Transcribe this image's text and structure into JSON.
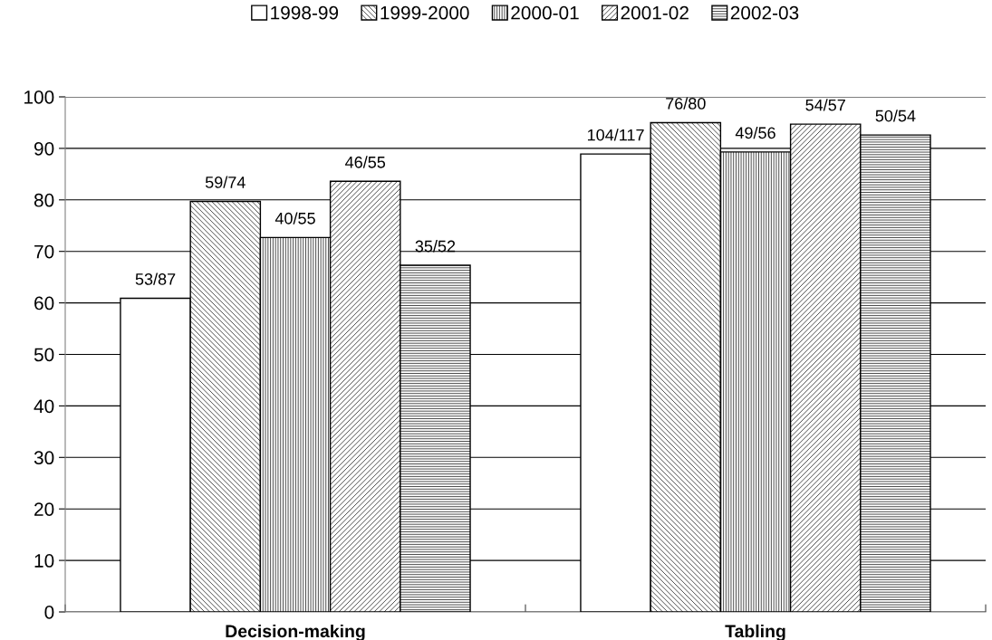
{
  "chart_data": {
    "type": "bar",
    "categories": [
      "Decision-making",
      "Tabling"
    ],
    "series": [
      {
        "name": "1998-99",
        "color": "#ffffff",
        "values": [
          60.9,
          88.9
        ],
        "value_labels": [
          "53/87",
          "104/117"
        ]
      },
      {
        "name": "1999-2000",
        "color": "#000000",
        "values": [
          79.7,
          95.0
        ],
        "value_labels": [
          "59/74",
          "76/80"
        ]
      },
      {
        "name": "2000-01",
        "color": "#000000",
        "values": [
          72.7,
          89.3
        ],
        "value_labels": [
          "40/55",
          "49/56"
        ]
      },
      {
        "name": "2001-02",
        "color": "#000000",
        "values": [
          83.6,
          94.7
        ],
        "value_labels": [
          "46/55",
          "54/57"
        ]
      },
      {
        "name": "2002-03",
        "color": "#000000",
        "values": [
          67.3,
          92.6
        ],
        "value_labels": [
          "35/52",
          "50/54"
        ]
      }
    ],
    "ylim": [
      0,
      100
    ],
    "yticks": [
      0,
      10,
      20,
      30,
      40,
      50,
      60,
      70,
      80,
      90,
      100
    ],
    "grid": "y",
    "legend": "top"
  }
}
